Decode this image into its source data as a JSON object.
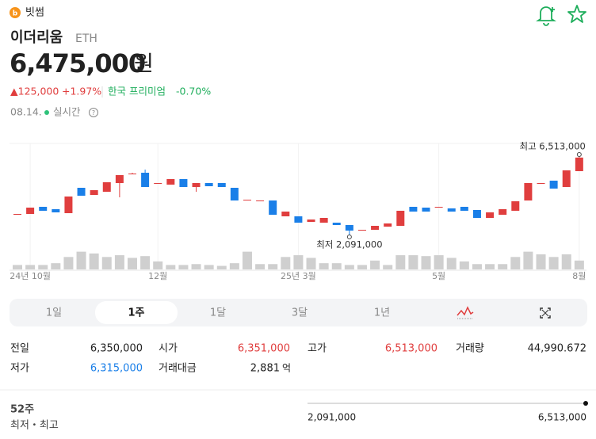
{
  "header": {
    "exchange": "빗썸",
    "name": "이더리움",
    "symbol": "ETH"
  },
  "price": {
    "value": "6,475,000",
    "unit": "원",
    "change": "▲125,000",
    "change_rate": "+1.97%",
    "premium_label": "한국 프리미엄",
    "premium": "-0.70%",
    "date": "08.14.",
    "live": "실시간"
  },
  "chart_data": {
    "type": "candlestick",
    "categories": [
      null,
      "24년 10월",
      null,
      null,
      null,
      null,
      null,
      null,
      null,
      null,
      null,
      "12월",
      null,
      null,
      null,
      null,
      null,
      null,
      null,
      null,
      null,
      null,
      "25년 3월",
      null,
      null,
      null,
      null,
      null,
      null,
      null,
      null,
      null,
      null,
      "5월",
      null,
      null,
      null,
      null,
      null,
      null,
      null,
      null,
      null,
      null,
      "8월"
    ],
    "open": [
      3297000,
      3297000,
      3699000,
      3565000,
      3341000,
      4771000,
      4369000,
      4548000,
      5039000,
      5575000,
      5620000,
      5039000,
      4950000,
      5262000,
      4816000,
      5039000,
      5039000,
      4771000,
      4101000,
      4056000,
      4056000,
      3163000,
      3163000,
      2850000,
      2806000,
      2806000,
      2672000,
      2404000,
      2404000,
      2583000,
      2627000,
      3699000,
      3654000,
      3699000,
      3610000,
      3699000,
      3520000,
      3074000,
      3252000,
      3476000,
      4056000,
      5039000,
      5173000,
      4816000,
      5709000
    ],
    "high": [
      3297000,
      3654000,
      3699000,
      3565000,
      4280000,
      4771000,
      4637000,
      5084000,
      5486000,
      5620000,
      5798000,
      5039000,
      5262000,
      5262000,
      5039000,
      5039000,
      5039000,
      4771000,
      4101000,
      4056000,
      4056000,
      3431000,
      3163000,
      2984000,
      3074000,
      2806000,
      2672000,
      2404000,
      2627000,
      2761000,
      3476000,
      3699000,
      3654000,
      3699000,
      3610000,
      3699000,
      3520000,
      3386000,
      3565000,
      4012000,
      5039000,
      5039000,
      5173000,
      5754000,
      6513000
    ],
    "low": [
      3297000,
      3297000,
      3476000,
      3386000,
      3341000,
      4324000,
      4369000,
      4548000,
      4235000,
      5575000,
      4816000,
      5039000,
      4950000,
      4816000,
      4548000,
      4860000,
      4816000,
      4056000,
      4101000,
      4056000,
      3252000,
      3163000,
      2806000,
      2850000,
      2806000,
      2672000,
      2091000,
      2404000,
      2404000,
      2583000,
      2627000,
      3431000,
      3431000,
      3699000,
      3431000,
      3476000,
      3074000,
      3074000,
      3252000,
      3476000,
      4056000,
      5039000,
      4726000,
      4816000,
      5709000
    ],
    "close": [
      3297000,
      3654000,
      3476000,
      3386000,
      4280000,
      4324000,
      4637000,
      5084000,
      5486000,
      5575000,
      4816000,
      5039000,
      5262000,
      4816000,
      5039000,
      4860000,
      4816000,
      4056000,
      4101000,
      4056000,
      3252000,
      3431000,
      2806000,
      2984000,
      3074000,
      2672000,
      2359000,
      2404000,
      2627000,
      2761000,
      3476000,
      3431000,
      3431000,
      3699000,
      3431000,
      3476000,
      3074000,
      3386000,
      3565000,
      4012000,
      5039000,
      5039000,
      4726000,
      5754000,
      6475000
    ],
    "volume": [
      5,
      5,
      5,
      7,
      14,
      20,
      18,
      14,
      16,
      13,
      15,
      9,
      5,
      5,
      6,
      5,
      4,
      7,
      20,
      6,
      6,
      14,
      16,
      13,
      7,
      7,
      5,
      5,
      10,
      5,
      16,
      16,
      15,
      16,
      13,
      9,
      6,
      6,
      6,
      14,
      20,
      17,
      14,
      17,
      10
    ],
    "ylim": [
      170000,
      7317000
    ],
    "volume_ylim": [
      0,
      25
    ],
    "up_color": "#e03e3e",
    "down_color": "#1a7fe8",
    "volume_color": "#cfcfcf",
    "max_label": "최고 6,513,000",
    "min_label": "최저 2,091,000"
  },
  "tabs": {
    "items": [
      "1일",
      "1주",
      "1달",
      "3달",
      "1년"
    ],
    "selected": 1
  },
  "stats": {
    "prev_close_label": "전일",
    "prev_close": "6,350,000",
    "open_label": "시가",
    "open": "6,351,000",
    "high_label": "고가",
    "high": "6,513,000",
    "volume_label": "거래량",
    "volume": "44,990.672",
    "low_label": "저가",
    "low": "6,315,000",
    "amount_label": "거래대금",
    "amount": "2,881",
    "amount_unit": "억"
  },
  "range52": {
    "label": "52주",
    "sublabel": "최저・최고",
    "low": "2,091,000",
    "high": "6,513,000"
  }
}
